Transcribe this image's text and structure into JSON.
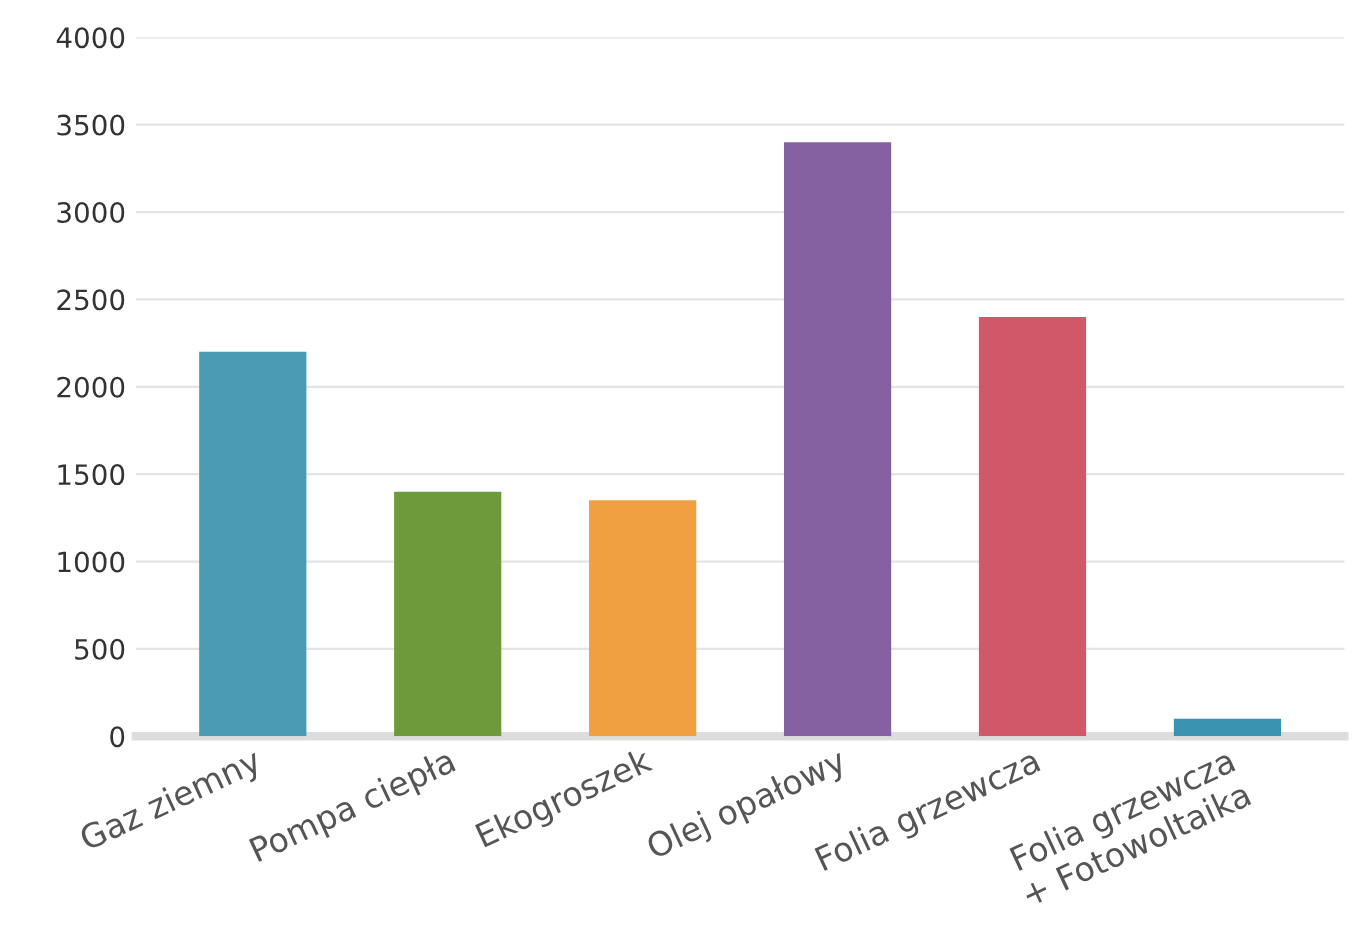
{
  "chart_data": {
    "type": "bar",
    "categories": [
      "Gaz ziemny",
      "Pompa ciepła",
      "Ekogroszek",
      "Olej opałowy",
      "Folia grzewcza",
      "Folia grzewcza\n+ Fotowoltaika"
    ],
    "values": [
      2200,
      1400,
      1350,
      3400,
      2400,
      100
    ],
    "colors": [
      "#4a9bb3",
      "#6f9a3c",
      "#f0a040",
      "#8460a0",
      "#d05868",
      "#3a93b0"
    ],
    "ylim": [
      0,
      4000
    ],
    "yticks": [
      0,
      500,
      1000,
      1500,
      2000,
      2500,
      3000,
      3500,
      4000
    ],
    "grid": "y"
  }
}
